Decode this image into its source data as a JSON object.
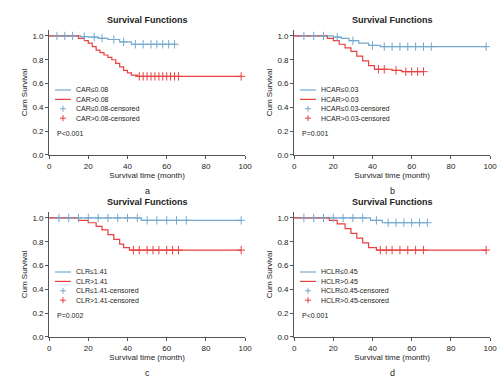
{
  "chart_data": [
    {
      "type": "line",
      "title": "Survival Functions",
      "x_label": "Survival time (month)",
      "y_label": "Cum Survival",
      "label": "a",
      "annotations": [
        "P<0.001"
      ],
      "legend": "bottom left",
      "grid": false,
      "xlim": [
        0,
        100
      ],
      "xticks": [
        0,
        20,
        40,
        60,
        80,
        100
      ],
      "ylim": [
        0,
        1.05
      ],
      "yticks": [
        {
          "value": 0,
          "label": "0.0"
        },
        {
          "value": 0.2,
          "label": "0.2"
        },
        {
          "value": 0.4,
          "label": "0.4"
        },
        {
          "value": 0.6,
          "label": "0.6"
        },
        {
          "value": 0.8,
          "label": "0.8"
        },
        {
          "value": 1,
          "label": "1.0"
        }
      ],
      "series": [
        {
          "name": "CAR≤0.08",
          "type": "line",
          "line_style": "step",
          "color": "#74a9cf",
          "x": [
            0,
            16,
            20,
            25,
            30,
            36,
            42,
            65
          ],
          "values": [
            1,
            0.995,
            0.99,
            0.98,
            0.97,
            0.95,
            0.93,
            0.93
          ]
        },
        {
          "name": "CAR>0.08",
          "type": "line",
          "line_style": "step",
          "color": "#e8413f",
          "x": [
            0,
            15,
            18,
            20,
            22,
            24,
            26,
            28,
            30,
            32,
            34,
            36,
            38,
            40,
            42,
            45,
            98
          ],
          "values": [
            1,
            0.98,
            0.96,
            0.94,
            0.91,
            0.88,
            0.86,
            0.84,
            0.82,
            0.8,
            0.77,
            0.74,
            0.71,
            0.69,
            0.67,
            0.66,
            0.66
          ]
        },
        {
          "name": "CAR≤0.08-censored",
          "type": "scatter",
          "marker": "cross",
          "color": "#74a9cf",
          "x": [
            4,
            8,
            12,
            18,
            23,
            27,
            33,
            38,
            44,
            48,
            52,
            55,
            58,
            61,
            64
          ],
          "values": [
            1,
            1,
            1,
            0.995,
            0.99,
            0.98,
            0.97,
            0.95,
            0.93,
            0.93,
            0.93,
            0.93,
            0.93,
            0.93,
            0.93
          ]
        },
        {
          "name": "CAR>0.08-censored",
          "type": "scatter",
          "marker": "cross",
          "color": "#e8413f",
          "x": [
            46,
            48,
            50,
            52,
            54,
            56,
            58,
            60,
            62,
            64,
            66,
            98
          ],
          "values": [
            0.66,
            0.66,
            0.66,
            0.66,
            0.66,
            0.66,
            0.66,
            0.66,
            0.66,
            0.66,
            0.66,
            0.66
          ]
        }
      ]
    },
    {
      "type": "line",
      "title": "Survival Functions",
      "x_label": "Survival time (month)",
      "y_label": "Cum Survival",
      "label": "b",
      "annotations": [
        "P=0.001"
      ],
      "legend": "bottom left",
      "grid": false,
      "xlim": [
        0,
        100
      ],
      "xticks": [
        0,
        20,
        40,
        60,
        80,
        100
      ],
      "ylim": [
        0,
        1.05
      ],
      "yticks": [
        {
          "value": 0,
          "label": "0.0"
        },
        {
          "value": 0.2,
          "label": "0.2"
        },
        {
          "value": 0.4,
          "label": "0.4"
        },
        {
          "value": 0.6,
          "label": "0.6"
        },
        {
          "value": 0.8,
          "label": "0.8"
        },
        {
          "value": 1,
          "label": "1.0"
        }
      ],
      "series": [
        {
          "name": "HCAR≤0.03",
          "type": "line",
          "line_style": "step",
          "color": "#74a9cf",
          "x": [
            0,
            20,
            24,
            28,
            33,
            38,
            44,
            98
          ],
          "values": [
            1,
            0.99,
            0.98,
            0.96,
            0.94,
            0.92,
            0.91,
            0.91
          ]
        },
        {
          "name": "HCAR>0.03",
          "type": "line",
          "line_style": "step",
          "color": "#e8413f",
          "x": [
            0,
            17,
            20,
            23,
            26,
            29,
            32,
            35,
            38,
            41,
            50,
            55,
            66
          ],
          "values": [
            1,
            0.98,
            0.96,
            0.93,
            0.9,
            0.87,
            0.83,
            0.79,
            0.75,
            0.72,
            0.71,
            0.7,
            0.7
          ]
        },
        {
          "name": "HCAR≤0.03-censored",
          "type": "scatter",
          "marker": "cross",
          "color": "#74a9cf",
          "x": [
            5,
            10,
            15,
            22,
            30,
            40,
            46,
            50,
            54,
            58,
            62,
            66,
            70,
            98
          ],
          "values": [
            1,
            1,
            1,
            0.99,
            0.96,
            0.92,
            0.91,
            0.91,
            0.91,
            0.91,
            0.91,
            0.91,
            0.91,
            0.91
          ]
        },
        {
          "name": "HCAR>0.03-censored",
          "type": "scatter",
          "marker": "cross",
          "color": "#e8413f",
          "x": [
            43,
            46,
            52,
            57,
            60,
            63,
            66
          ],
          "values": [
            0.72,
            0.72,
            0.71,
            0.7,
            0.7,
            0.7,
            0.7
          ]
        }
      ]
    },
    {
      "type": "line",
      "title": "Survival Functions",
      "x_label": "Survival time (month)",
      "y_label": "Cum Survival",
      "label": "c",
      "annotations": [
        "P=0.002"
      ],
      "legend": "bottom left",
      "grid": false,
      "xlim": [
        0,
        100
      ],
      "xticks": [
        0,
        20,
        40,
        60,
        80,
        100
      ],
      "ylim": [
        0,
        1.05
      ],
      "yticks": [
        {
          "value": 0,
          "label": "0.0"
        },
        {
          "value": 0.2,
          "label": "0.2"
        },
        {
          "value": 0.4,
          "label": "0.4"
        },
        {
          "value": 0.6,
          "label": "0.6"
        },
        {
          "value": 0.8,
          "label": "0.8"
        },
        {
          "value": 1,
          "label": "1.0"
        }
      ],
      "series": [
        {
          "name": "CLR≤1.41",
          "type": "line",
          "line_style": "step",
          "color": "#74a9cf",
          "x": [
            0,
            47,
            98
          ],
          "values": [
            1,
            0.98,
            0.98
          ]
        },
        {
          "name": "CLR>1.41",
          "type": "line",
          "line_style": "step",
          "color": "#e8413f",
          "x": [
            0,
            15,
            20,
            24,
            27,
            30,
            33,
            36,
            38,
            41,
            98
          ],
          "values": [
            1,
            0.98,
            0.96,
            0.93,
            0.9,
            0.86,
            0.82,
            0.78,
            0.75,
            0.73,
            0.73
          ]
        },
        {
          "name": "CLR≤1.41-censored",
          "type": "scatter",
          "marker": "cross",
          "color": "#74a9cf",
          "x": [
            5,
            10,
            15,
            20,
            25,
            30,
            35,
            40,
            45,
            50,
            55,
            60,
            65,
            70,
            98
          ],
          "values": [
            1,
            1,
            1,
            1,
            1,
            1,
            1,
            1,
            1,
            0.98,
            0.98,
            0.98,
            0.98,
            0.98,
            0.98
          ]
        },
        {
          "name": "CLR>1.41-censored",
          "type": "scatter",
          "marker": "cross",
          "color": "#e8413f",
          "x": [
            43,
            46,
            50,
            53,
            56,
            60,
            63,
            66,
            98
          ],
          "values": [
            0.73,
            0.73,
            0.73,
            0.73,
            0.73,
            0.73,
            0.73,
            0.73,
            0.73
          ]
        }
      ]
    },
    {
      "type": "line",
      "title": "Survival Functions",
      "x_label": "Survival time (month)",
      "y_label": "Cum Survival",
      "label": "d",
      "annotations": [
        "P<0.001"
      ],
      "legend": "bottom left",
      "grid": false,
      "xlim": [
        0,
        100
      ],
      "xticks": [
        0,
        20,
        40,
        60,
        80,
        100
      ],
      "ylim": [
        0,
        1.05
      ],
      "yticks": [
        {
          "value": 0,
          "label": "0.0"
        },
        {
          "value": 0.2,
          "label": "0.2"
        },
        {
          "value": 0.4,
          "label": "0.4"
        },
        {
          "value": 0.6,
          "label": "0.6"
        },
        {
          "value": 0.8,
          "label": "0.8"
        },
        {
          "value": 1,
          "label": "1.0"
        }
      ],
      "series": [
        {
          "name": "HCLR≤0.45",
          "type": "line",
          "line_style": "step",
          "color": "#74a9cf",
          "x": [
            0,
            39,
            45,
            68
          ],
          "values": [
            1,
            0.98,
            0.96,
            0.96
          ]
        },
        {
          "name": "HCLR>0.45",
          "type": "line",
          "line_style": "step",
          "color": "#e8413f",
          "x": [
            0,
            18,
            22,
            26,
            29,
            32,
            35,
            38,
            42,
            98
          ],
          "values": [
            1,
            0.98,
            0.95,
            0.91,
            0.87,
            0.83,
            0.79,
            0.75,
            0.73,
            0.73
          ]
        },
        {
          "name": "HCLR≤0.45-censored",
          "type": "scatter",
          "marker": "cross",
          "color": "#74a9cf",
          "x": [
            5,
            10,
            15,
            20,
            25,
            30,
            35,
            42,
            48,
            52,
            56,
            60,
            64,
            68
          ],
          "values": [
            1,
            1,
            1,
            1,
            1,
            1,
            1,
            0.98,
            0.96,
            0.96,
            0.96,
            0.96,
            0.96,
            0.96
          ]
        },
        {
          "name": "HCLR>0.45-censored",
          "type": "scatter",
          "marker": "cross",
          "color": "#e8413f",
          "x": [
            44,
            47,
            50,
            54,
            58,
            62,
            66,
            98
          ],
          "values": [
            0.73,
            0.73,
            0.73,
            0.73,
            0.73,
            0.73,
            0.73,
            0.73
          ]
        }
      ]
    }
  ]
}
